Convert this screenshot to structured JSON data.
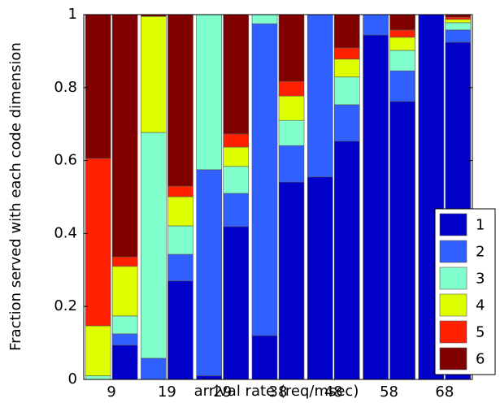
{
  "chart_data": {
    "type": "grouped-stacked-bar",
    "xlabel": "arrival rate (req/msec)",
    "ylabel": "Fraction served with each code dimension",
    "categories": [
      "9",
      "19",
      "29",
      "38",
      "48",
      "58",
      "68"
    ],
    "ylim": [
      0,
      1
    ],
    "yticks": [
      0,
      0.2,
      0.4,
      0.6,
      0.8,
      1
    ],
    "legend": "lower right",
    "series": [
      {
        "name": "1",
        "color": "#0000c8",
        "values": [
          [
            0,
            0.094
          ],
          [
            0,
            0.27
          ],
          [
            0.01,
            0.419
          ],
          [
            0.12,
            0.541
          ],
          [
            0.555,
            0.653
          ],
          [
            0.944,
            0.762
          ],
          [
            1.0,
            0.924
          ]
        ]
      },
      {
        "name": "2",
        "color": "#3060ff",
        "values": [
          [
            0,
            0.031
          ],
          [
            0.058,
            0.073
          ],
          [
            0.565,
            0.091
          ],
          [
            0.855,
            0.1
          ],
          [
            0.445,
            0.1
          ],
          [
            0.056,
            0.084
          ],
          [
            0,
            0.034
          ]
        ]
      },
      {
        "name": "3",
        "color": "#80ffcc",
        "values": [
          [
            0.01,
            0.049
          ],
          [
            0.619,
            0.078
          ],
          [
            0.425,
            0.074
          ],
          [
            0.025,
            0.069
          ],
          [
            0,
            0.076
          ],
          [
            0,
            0.056
          ],
          [
            0,
            0.02
          ]
        ]
      },
      {
        "name": "4",
        "color": "#ddff00",
        "values": [
          [
            0.137,
            0.136
          ],
          [
            0.318,
            0.08
          ],
          [
            0,
            0.053
          ],
          [
            0,
            0.067
          ],
          [
            0,
            0.049
          ],
          [
            0,
            0.036
          ],
          [
            0,
            0.009
          ]
        ]
      },
      {
        "name": "5",
        "color": "#ff2000",
        "values": [
          [
            0.459,
            0.026
          ],
          [
            0,
            0.029
          ],
          [
            0,
            0.036
          ],
          [
            0,
            0.04
          ],
          [
            0,
            0.031
          ],
          [
            0,
            0.02
          ],
          [
            0,
            0.006
          ]
        ]
      },
      {
        "name": "6",
        "color": "#800000",
        "values": [
          [
            0.394,
            0.664
          ],
          [
            0.005,
            0.47
          ],
          [
            0,
            0.327
          ],
          [
            0,
            0.183
          ],
          [
            0,
            0.091
          ],
          [
            0,
            0.042
          ],
          [
            0,
            0.007
          ]
        ]
      }
    ]
  }
}
